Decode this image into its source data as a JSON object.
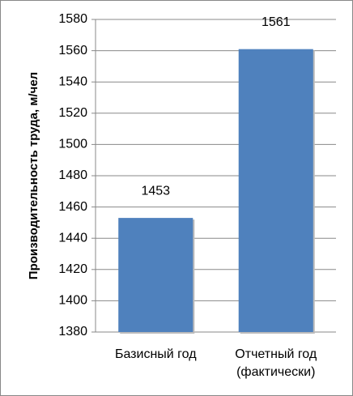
{
  "chart_data": {
    "type": "bar",
    "y_label": "Производительность труда, м/чел",
    "categories": [
      "Базисный год",
      "Отчетный год (фактически)"
    ],
    "values": [
      1453,
      1561
    ],
    "color": "#4f81bd",
    "ylim": [
      1380,
      1580
    ],
    "yticks": [
      1380,
      1400,
      1420,
      1440,
      1460,
      1480,
      1500,
      1520,
      1540,
      1560,
      1580
    ],
    "grid": true
  }
}
